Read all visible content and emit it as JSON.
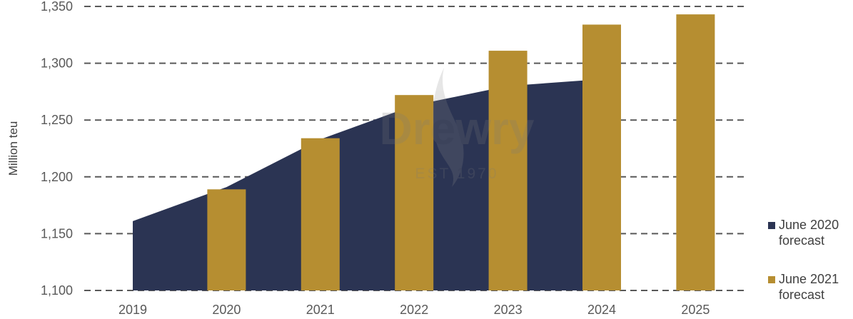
{
  "chart_data": {
    "type": "bar",
    "title": "",
    "xlabel": "",
    "ylabel": "Million teu",
    "ylim": [
      1100,
      1350
    ],
    "yticks": [
      "1,100",
      "1,150",
      "1,200",
      "1,250",
      "1,300",
      "1,350"
    ],
    "ytick_values": [
      1100,
      1150,
      1200,
      1250,
      1300,
      1350
    ],
    "grid": true,
    "legend_position": "bottom-right",
    "categories": [
      "2019",
      "2020",
      "2021",
      "2022",
      "2023",
      "2024",
      "2025"
    ],
    "series": [
      {
        "name": "June 2020 forecast",
        "type": "area",
        "color": "#2b3453",
        "values": [
          1161,
          1191,
          1233,
          1263,
          1280,
          1286,
          null
        ]
      },
      {
        "name": "June 2021 forecast",
        "type": "bar",
        "color": "#b68e31",
        "values": [
          null,
          1189,
          1234,
          1272,
          1311,
          1334,
          1343
        ]
      }
    ],
    "legend": [
      {
        "line1": "June 2020",
        "line2": "forecast",
        "color": "#2b3453"
      },
      {
        "line1": "June 2021",
        "line2": "forecast",
        "color": "#b68e31"
      }
    ],
    "watermark": {
      "brand": "Drewry",
      "tagline": "EST 1970"
    }
  }
}
